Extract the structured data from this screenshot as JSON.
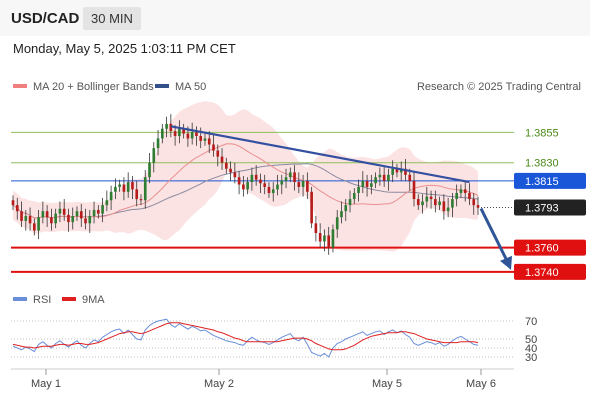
{
  "header": {
    "pair": "USD/CAD",
    "timeframe": "30 MIN",
    "datetime": "Monday, May 5, 2025 1:03:11 PM CET"
  },
  "legend": {
    "ma20": {
      "label": "MA 20 + Bollinger Bands",
      "color": "#f08080"
    },
    "ma50": {
      "label": "MA 50",
      "color": "#33508a"
    },
    "credit": "Research © 2025 Trading Central"
  },
  "rsi_legend": {
    "rsi": {
      "label": "RSI",
      "color": "#6a8fd8"
    },
    "ma9": {
      "label": "9MA",
      "color": "#e02020"
    }
  },
  "chart_data": [
    {
      "type": "candlestick",
      "title": "USD/CAD",
      "x_ticks": [
        "May 1",
        "May 2",
        "May 5",
        "May 6"
      ],
      "ylim": [
        1.3725,
        1.3885
      ],
      "levels": [
        {
          "value": "1.3855",
          "kind": "resistance",
          "color": "#8dc05a"
        },
        {
          "value": "1.3830",
          "kind": "resistance",
          "color": "#8dc05a"
        },
        {
          "value": "1.3815",
          "kind": "pivot",
          "color": "#1a56d8"
        },
        {
          "value": "1.3793",
          "kind": "last",
          "color": "#222222"
        },
        {
          "value": "1.3760",
          "kind": "support",
          "color": "#e01010"
        },
        {
          "value": "1.3740",
          "kind": "support",
          "color": "#e01010"
        }
      ],
      "closes": [
        1.3795,
        1.379,
        1.3782,
        1.3786,
        1.378,
        1.3774,
        1.3785,
        1.379,
        1.3785,
        1.378,
        1.3788,
        1.3792,
        1.3787,
        1.3781,
        1.3786,
        1.379,
        1.3784,
        1.378,
        1.3786,
        1.3791,
        1.3788,
        1.3795,
        1.3799,
        1.3806,
        1.381,
        1.3812,
        1.3806,
        1.3814,
        1.3808,
        1.38,
        1.3799,
        1.3818,
        1.383,
        1.3842,
        1.385,
        1.3858,
        1.3862,
        1.3856,
        1.3852,
        1.3858,
        1.3854,
        1.385,
        1.3855,
        1.3852,
        1.3848,
        1.385,
        1.3845,
        1.384,
        1.3835,
        1.383,
        1.3825,
        1.3822,
        1.3818,
        1.3812,
        1.3808,
        1.3814,
        1.382,
        1.3816,
        1.3813,
        1.381,
        1.3805,
        1.3808,
        1.3812,
        1.3815,
        1.3818,
        1.3822,
        1.3814,
        1.381,
        1.3815,
        1.3806,
        1.378,
        1.3772,
        1.3765,
        1.377,
        1.376,
        1.3775,
        1.3785,
        1.379,
        1.3795,
        1.38,
        1.3805,
        1.381,
        1.3815,
        1.381,
        1.3813,
        1.3818,
        1.382,
        1.3815,
        1.382,
        1.3825,
        1.3822,
        1.3825,
        1.382,
        1.3815,
        1.38,
        1.3795,
        1.3798,
        1.3802,
        1.38,
        1.3795,
        1.3798,
        1.379,
        1.3793,
        1.38,
        1.3805,
        1.3808,
        1.3805,
        1.38,
        1.3795,
        1.3793
      ],
      "trendline": {
        "from": {
          "index": 37,
          "value": 1.386
        },
        "to": {
          "index": 107,
          "value": 1.3814
        }
      },
      "forecast_arrow": {
        "from": 1.3793,
        "to": 1.374
      }
    },
    {
      "type": "line",
      "title": "RSI",
      "ylim": [
        20,
        80
      ],
      "y_ticks": [
        "70",
        "50",
        "40",
        "30"
      ],
      "series": [
        {
          "name": "RSI",
          "values": [
            42,
            40,
            38,
            41,
            39,
            36,
            44,
            47,
            43,
            40,
            45,
            48,
            44,
            41,
            45,
            48,
            43,
            40,
            45,
            49,
            47,
            52,
            55,
            58,
            60,
            61,
            56,
            60,
            55,
            50,
            49,
            60,
            65,
            68,
            70,
            71,
            72,
            66,
            63,
            67,
            64,
            61,
            64,
            62,
            59,
            60,
            57,
            54,
            52,
            50,
            48,
            47,
            46,
            44,
            43,
            48,
            52,
            49,
            47,
            46,
            44,
            46,
            49,
            52,
            54,
            56,
            50,
            48,
            52,
            44,
            35,
            33,
            31,
            34,
            30,
            40,
            45,
            47,
            50,
            52,
            54,
            56,
            58,
            54,
            56,
            58,
            59,
            55,
            58,
            60,
            57,
            59,
            55,
            52,
            45,
            43,
            45,
            47,
            46,
            44,
            46,
            42,
            44,
            48,
            51,
            53,
            50,
            47,
            44,
            43
          ]
        },
        {
          "name": "9MA",
          "values": [
            44,
            43,
            42,
            41,
            41,
            40,
            41,
            42,
            42,
            42,
            43,
            44,
            44,
            43,
            44,
            45,
            45,
            44,
            44,
            45,
            46,
            48,
            50,
            52,
            54,
            56,
            57,
            58,
            58,
            57,
            56,
            57,
            59,
            61,
            63,
            65,
            67,
            68,
            68,
            68,
            67,
            66,
            65,
            64,
            63,
            62,
            61,
            60,
            58,
            57,
            55,
            53,
            51,
            50,
            48,
            47,
            47,
            47,
            47,
            47,
            47,
            47,
            47,
            48,
            49,
            50,
            51,
            51,
            51,
            50,
            48,
            45,
            43,
            41,
            39,
            38,
            38,
            38,
            39,
            41,
            43,
            46,
            49,
            51,
            53,
            54,
            55,
            56,
            57,
            57,
            57,
            58,
            58,
            57,
            56,
            54,
            52,
            50,
            49,
            48,
            47,
            46,
            46,
            46,
            46,
            47,
            47,
            47,
            47,
            46
          ]
        }
      ]
    }
  ]
}
